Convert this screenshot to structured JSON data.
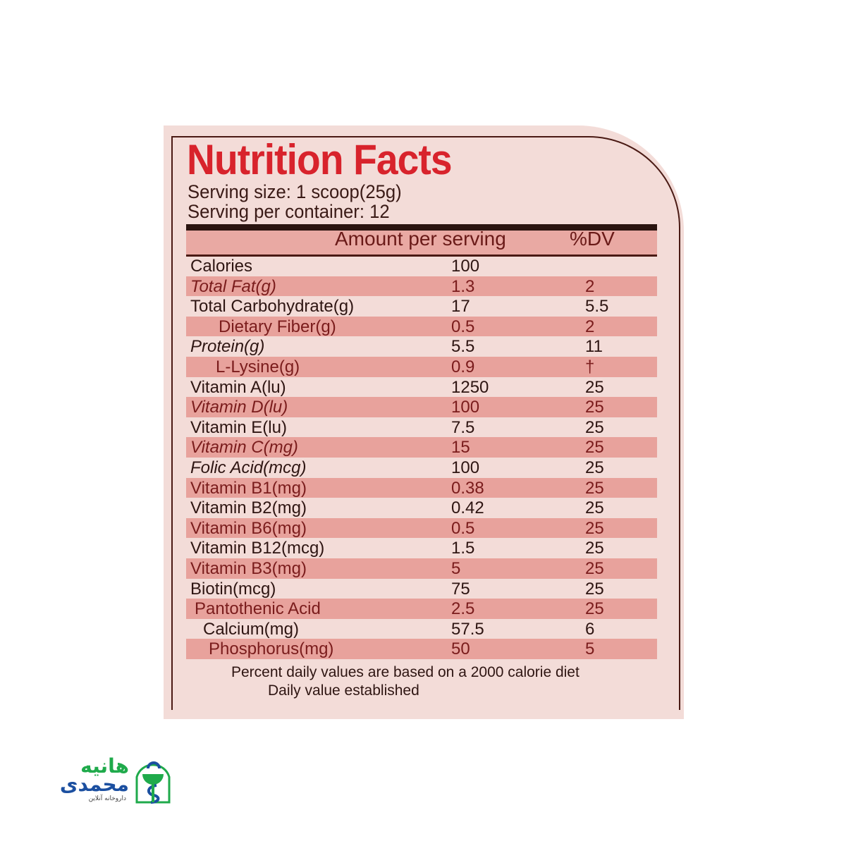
{
  "label": {
    "title": "Nutrition Facts",
    "serving_size": "Serving size: 1 scoop(25g)",
    "servings_per_container": "Serving per container: 12",
    "header": {
      "amount": "Amount per serving",
      "dv": "%DV"
    },
    "colors": {
      "title": "#d8232c",
      "band": "#e8a29c",
      "paper": "#f3dcd8",
      "border": "#4a1a14"
    },
    "rows": [
      {
        "name": "Calories",
        "amount": "100",
        "dv": "",
        "shaded": false
      },
      {
        "name": "Total Fat(g)",
        "amount": "1.3",
        "dv": "2",
        "shaded": true
      },
      {
        "name": "Total Carbohydrate(g)",
        "amount": "17",
        "dv": "5.5",
        "shaded": false
      },
      {
        "name": "Dietary Fiber(g)",
        "amount": "0.5",
        "dv": "2",
        "shaded": true
      },
      {
        "name": "Protein(g)",
        "amount": "5.5",
        "dv": "11",
        "shaded": false
      },
      {
        "name": "L-Lysine(g)",
        "amount": "0.9",
        "dv": "†",
        "shaded": true
      },
      {
        "name": "Vitamin A(lu)",
        "amount": "1250",
        "dv": "25",
        "shaded": false
      },
      {
        "name": "Vitamin D(lu)",
        "amount": "100",
        "dv": "25",
        "shaded": true
      },
      {
        "name": "Vitamin E(lu)",
        "amount": "7.5",
        "dv": "25",
        "shaded": false
      },
      {
        "name": "Vitamin C(mg)",
        "amount": "15",
        "dv": "25",
        "shaded": true
      },
      {
        "name": "Folic Acid(mcg)",
        "amount": "100",
        "dv": "25",
        "shaded": false
      },
      {
        "name": "Vitamin B1(mg)",
        "amount": "0.38",
        "dv": "25",
        "shaded": true
      },
      {
        "name": "Vitamin B2(mg)",
        "amount": "0.42",
        "dv": "25",
        "shaded": false
      },
      {
        "name": "Vitamin B6(mg)",
        "amount": "0.5",
        "dv": "25",
        "shaded": true
      },
      {
        "name": "Vitamin B12(mcg)",
        "amount": "1.5",
        "dv": "25",
        "shaded": false
      },
      {
        "name": "Vitamin B3(mg)",
        "amount": "5",
        "dv": "25",
        "shaded": true
      },
      {
        "name": "Biotin(mcg)",
        "amount": "75",
        "dv": "25",
        "shaded": false
      },
      {
        "name": "Pantothenic Acid",
        "amount": "2.5",
        "dv": "25",
        "shaded": true
      },
      {
        "name": "Calcium(mg)",
        "amount": "57.5",
        "dv": "6",
        "shaded": false
      },
      {
        "name": "Phosphorus(mg)",
        "amount": "50",
        "dv": "5",
        "shaded": true
      }
    ],
    "footnote1": "Percent daily values are based on a 2000 calorie diet",
    "footnote2": "Daily value established"
  },
  "logo": {
    "name_line1": "هانیه",
    "name_line2": "محمدی",
    "tagline": "داروخانه آنلاین",
    "color_green": "#1faa4b",
    "color_blue": "#1b4fa0"
  }
}
